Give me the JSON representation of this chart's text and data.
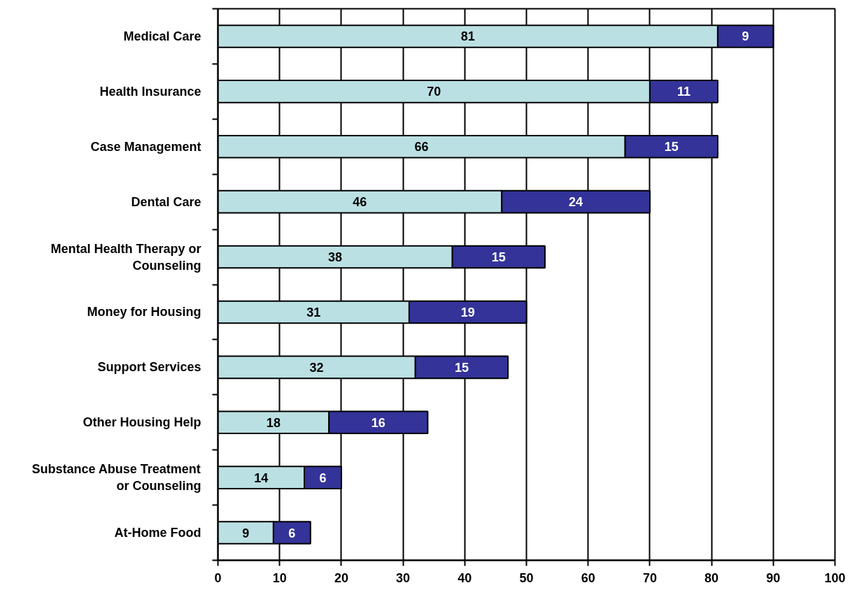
{
  "chart_data": {
    "type": "bar",
    "orientation": "horizontal",
    "stacked": true,
    "categories": [
      "Medical Care",
      "Health Insurance",
      "Case Management",
      "Dental Care",
      "Mental Health Therapy or Counseling",
      "Money for Housing",
      "Support Services",
      "Other Housing Help",
      "Substance Abuse Treatment or Counseling",
      "At-Home Food"
    ],
    "series": [
      {
        "color": "#bbe0e3",
        "values": [
          81,
          70,
          66,
          46,
          38,
          31,
          32,
          18,
          14,
          9
        ]
      },
      {
        "color": "#333399",
        "values": [
          9,
          11,
          15,
          24,
          15,
          19,
          15,
          16,
          6,
          6
        ]
      }
    ],
    "xlim": [
      0,
      100
    ],
    "xticks": [
      0,
      10,
      20,
      30,
      40,
      50,
      60,
      70,
      80,
      90,
      100
    ],
    "grid": "x",
    "data_labels": true
  }
}
